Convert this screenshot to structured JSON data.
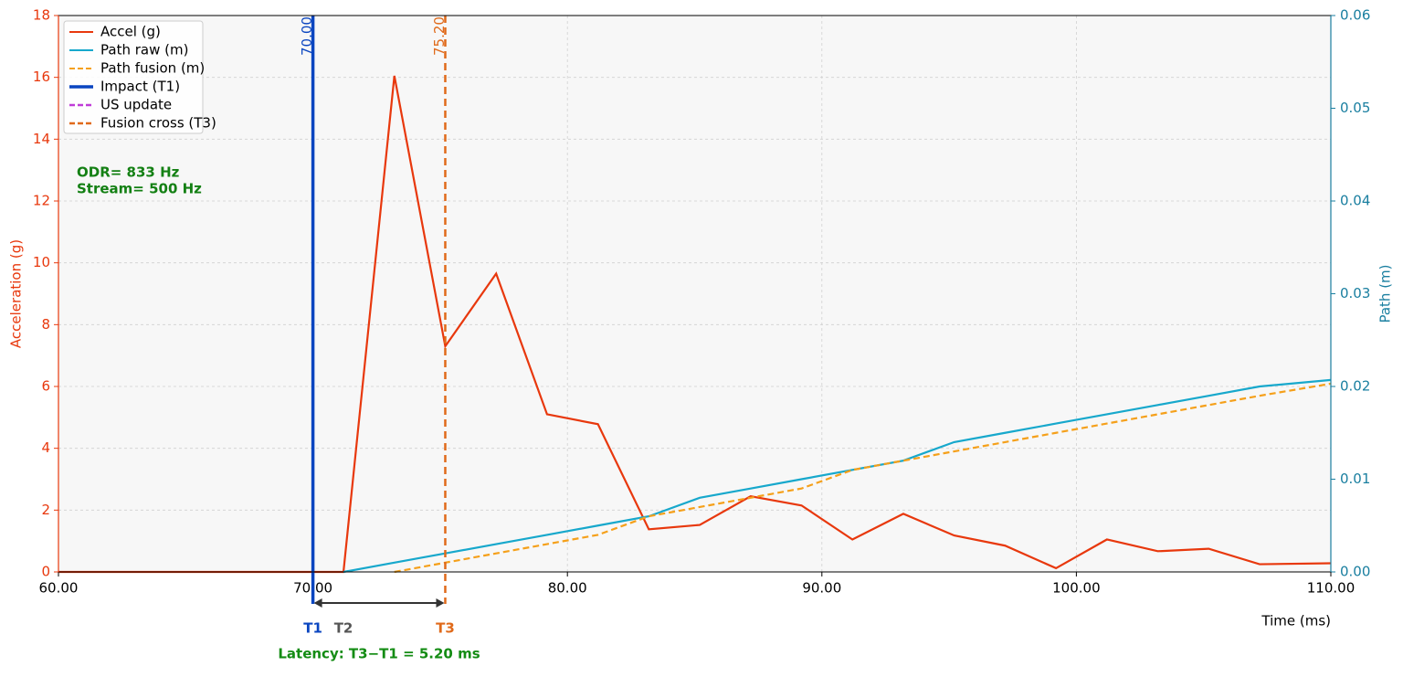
{
  "chart_data": {
    "type": "line",
    "x": [
      60,
      70,
      71.2,
      73.2,
      75.2,
      77.2,
      79.2,
      81.2,
      83.2,
      85.2,
      87.2,
      89.2,
      91.2,
      93.2,
      95.2,
      97.2,
      99.2,
      101.2,
      103.2,
      105.2,
      107.2,
      110
    ],
    "series": [
      {
        "name": "Accel (g)",
        "color": "#e8380d",
        "dashed": false,
        "values": [
          0,
          0,
          0,
          16.05,
          7.3,
          9.65,
          5.1,
          4.78,
          1.38,
          1.52,
          2.45,
          2.15,
          1.05,
          1.88,
          1.18,
          0.85,
          0.12,
          1.05,
          0.67,
          0.75,
          0.25,
          0.28
        ]
      },
      {
        "name": "Path raw (m)",
        "color": "#17a8cc",
        "dashed": false,
        "axis": "y2",
        "values": [
          null,
          null,
          0,
          0.001,
          0.002,
          0.003,
          0.004,
          0.005,
          0.006,
          0.008,
          0.009,
          0.01,
          0.011,
          0.012,
          0.014,
          0.015,
          0.016,
          0.017,
          0.018,
          0.019,
          0.02,
          0.0207
        ]
      },
      {
        "name": "Path fusion (m)",
        "color": "#f5a01a",
        "dashed": true,
        "axis": "y2",
        "values": [
          null,
          null,
          null,
          0,
          0.001,
          0.002,
          0.003,
          0.004,
          0.006,
          0.007,
          0.008,
          0.009,
          0.011,
          0.012,
          0.013,
          0.014,
          0.015,
          0.016,
          0.017,
          0.018,
          0.019,
          0.0203
        ]
      }
    ],
    "markers": [
      {
        "name": "Impact (T1)",
        "color": "#0a45c0",
        "dashed": false,
        "x": 70,
        "label": "70.00"
      },
      {
        "name": "US update",
        "color": "#c03cd8",
        "dashed": true
      },
      {
        "name": "Fusion cross (T3)",
        "color": "#e06a1a",
        "dashed": true,
        "x": 75.2,
        "label": "75.20"
      }
    ],
    "xlabel": "Time (ms)",
    "ylabel": "Acceleration (g)",
    "y2label": "Path (m)",
    "xlim": [
      60,
      110
    ],
    "ylim": [
      0,
      18
    ],
    "y2lim": [
      0,
      0.06
    ],
    "xticks": [
      {
        "value": 60,
        "label": "60.00"
      },
      {
        "value": 70,
        "label": "70.00"
      },
      {
        "value": 80,
        "label": "80.00"
      },
      {
        "value": 90,
        "label": "90.00"
      },
      {
        "value": 100,
        "label": "100.00"
      },
      {
        "value": 110,
        "label": "110.00"
      }
    ],
    "yticks": [
      0,
      2,
      4,
      6,
      8,
      10,
      12,
      14,
      16,
      18
    ],
    "y2ticks": [
      {
        "value": 0,
        "label": "0.00"
      },
      {
        "value": 0.01,
        "label": "0.01"
      },
      {
        "value": 0.02,
        "label": "0.02"
      },
      {
        "value": 0.03,
        "label": "0.03"
      },
      {
        "value": 0.04,
        "label": "0.04"
      },
      {
        "value": 0.05,
        "label": "0.05"
      },
      {
        "value": 0.06,
        "label": "0.06"
      }
    ],
    "grid": true,
    "legend": "upper left",
    "annotations": {
      "rates": [
        "ODR= 833 Hz",
        "Stream= 500 Hz"
      ],
      "span_labels": [
        {
          "label": "T1",
          "x": 70,
          "color": "#0a45c0"
        },
        {
          "label": "T2",
          "x": 71.2,
          "color": "#555555"
        },
        {
          "label": "T3",
          "x": 75.2,
          "color": "#e06a1a"
        }
      ],
      "latency": "Latency: T3−T1 = 5.20 ms"
    }
  }
}
